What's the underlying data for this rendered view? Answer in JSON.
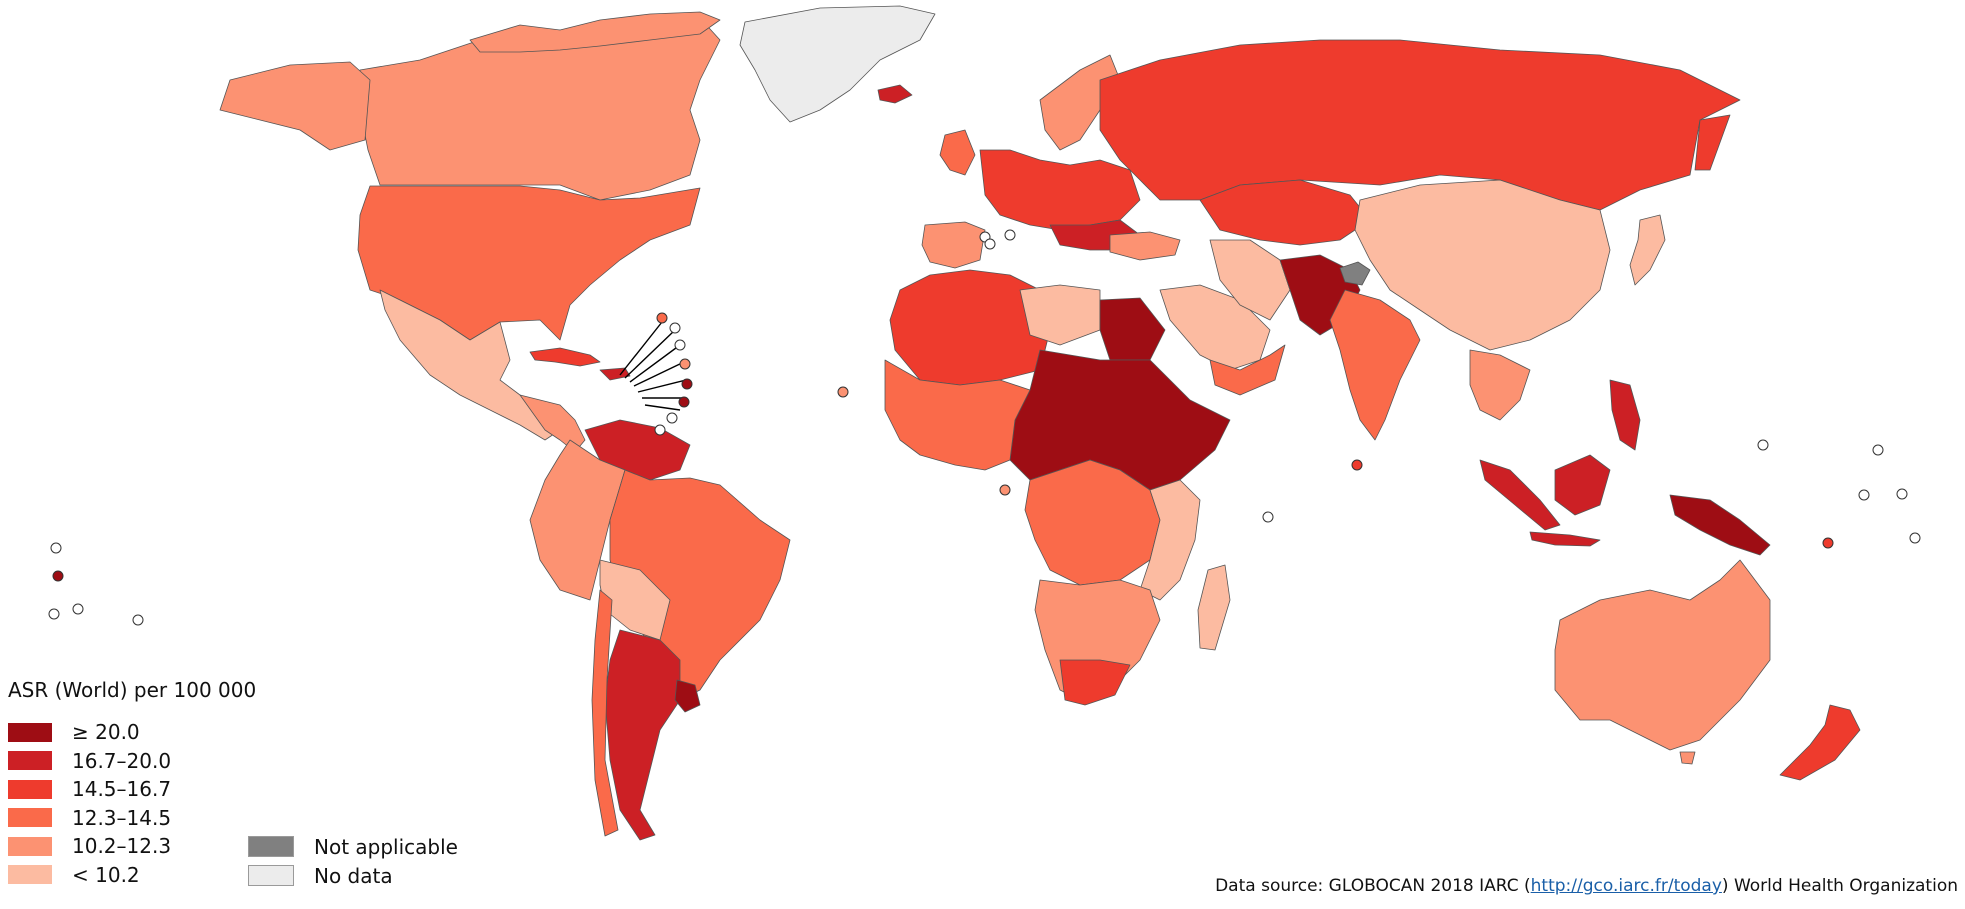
{
  "legend": {
    "title": "ASR (World) per 100 000",
    "classes": [
      {
        "label": "≥ 20.0",
        "color": "#9e0d14"
      },
      {
        "label": "16.7–20.0",
        "color": "#cc2025"
      },
      {
        "label": "14.5–16.7",
        "color": "#ee3b2d"
      },
      {
        "label": "12.3–14.5",
        "color": "#fa6a4a"
      },
      {
        "label": "10.2–12.3",
        "color": "#fc9272"
      },
      {
        "label": "< 10.2",
        "color": "#fcbba1"
      }
    ],
    "special": [
      {
        "label": "Not applicable",
        "color": "#808080"
      },
      {
        "label": "No data",
        "color": "#ececec"
      }
    ]
  },
  "source": {
    "prefix": "Data source: GLOBOCAN 2018  IARC (",
    "link": "http://gco.iarc.fr/today",
    "suffix": ")  World Health Organization"
  },
  "colors": {
    "land_stroke": "#555555",
    "background": "#ffffff"
  }
}
